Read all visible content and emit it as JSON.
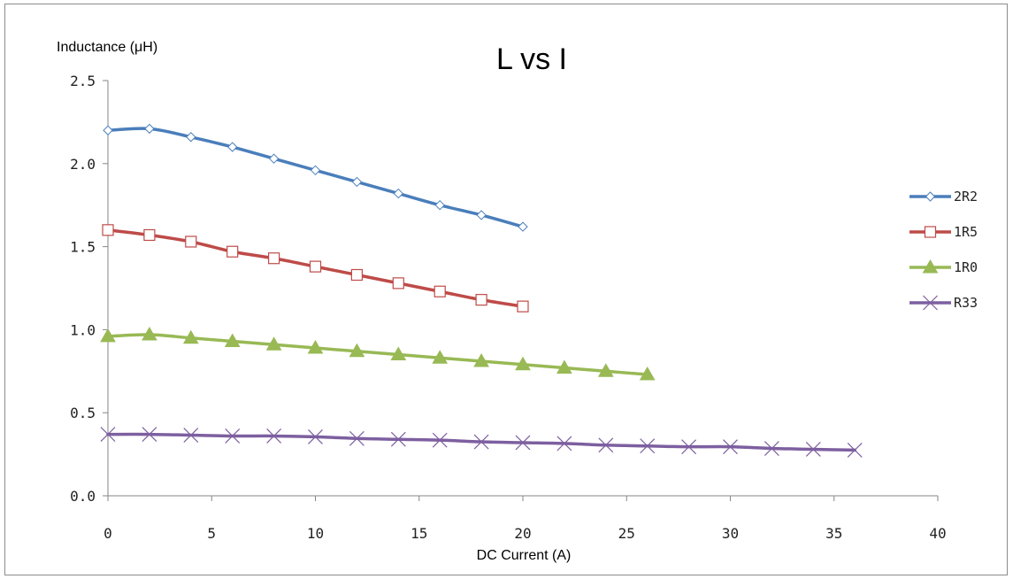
{
  "chart_data": {
    "type": "line",
    "title": "L vs I",
    "xlabel": "DC Current (A)",
    "ylabel": "Inductance (μH)",
    "xlim": [
      0,
      40
    ],
    "ylim": [
      0,
      2.5
    ],
    "xticks": [
      "0",
      "5",
      "10",
      "15",
      "20",
      "25",
      "30",
      "35",
      "40"
    ],
    "yticks": [
      "0.0",
      "0.5",
      "1.0",
      "1.5",
      "2.0",
      "2.5"
    ],
    "grid": false,
    "legend_position": "right",
    "series": [
      {
        "name": "2R2",
        "color": "#4a7ebb",
        "marker": "diamond",
        "x": [
          0,
          2,
          4,
          6,
          8,
          10,
          12,
          14,
          16,
          18,
          20
        ],
        "y": [
          2.2,
          2.21,
          2.16,
          2.1,
          2.03,
          1.96,
          1.89,
          1.82,
          1.75,
          1.69,
          1.62
        ]
      },
      {
        "name": "1R5",
        "color": "#be4b48",
        "marker": "square",
        "x": [
          0,
          2,
          4,
          6,
          8,
          10,
          12,
          14,
          16,
          18,
          20
        ],
        "y": [
          1.6,
          1.57,
          1.53,
          1.47,
          1.43,
          1.38,
          1.33,
          1.28,
          1.23,
          1.18,
          1.14
        ]
      },
      {
        "name": "1R0",
        "color": "#98b954",
        "marker": "triangle",
        "x": [
          0,
          2,
          4,
          6,
          8,
          10,
          12,
          14,
          16,
          18,
          20,
          22,
          24,
          26
        ],
        "y": [
          0.96,
          0.97,
          0.95,
          0.93,
          0.91,
          0.89,
          0.87,
          0.85,
          0.83,
          0.81,
          0.79,
          0.77,
          0.75,
          0.73
        ]
      },
      {
        "name": "R33",
        "color": "#7d5fa0",
        "marker": "x",
        "x": [
          0,
          2,
          4,
          6,
          8,
          10,
          12,
          14,
          16,
          18,
          20,
          22,
          24,
          26,
          28,
          30,
          32,
          34,
          36
        ],
        "y": [
          0.37,
          0.37,
          0.365,
          0.36,
          0.36,
          0.355,
          0.345,
          0.34,
          0.335,
          0.325,
          0.32,
          0.315,
          0.305,
          0.3,
          0.295,
          0.295,
          0.285,
          0.28,
          0.275
        ]
      }
    ]
  }
}
